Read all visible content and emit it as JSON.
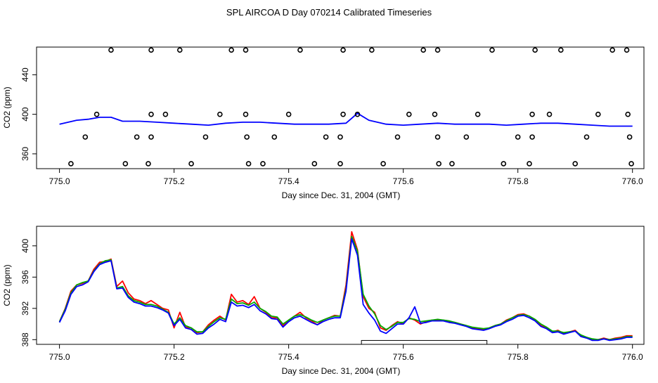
{
  "title": "SPL AIRCOA D  Day 070214  Calibrated Timeseries",
  "chart_data": [
    {
      "type": "scatter",
      "xlabel": "Day since Dec. 31, 2004 (GMT)",
      "ylabel": "CO2 (ppm)",
      "xlim": [
        774.96,
        776.02
      ],
      "ylim": [
        345,
        468
      ],
      "xticks": [
        775.0,
        775.2,
        775.4,
        775.6,
        775.8,
        776.0
      ],
      "xtick_labels": [
        "775.0",
        "775.2",
        "775.4",
        "775.6",
        "775.8",
        "776.0"
      ],
      "yticks": [
        360,
        400,
        440
      ],
      "ytick_labels": [
        "360",
        "400",
        "440"
      ],
      "series": [
        {
          "color": "#0000ff",
          "x": [
            775.0,
            775.03,
            775.05,
            775.07,
            775.09,
            775.11,
            775.14,
            775.17,
            775.2,
            775.23,
            775.26,
            775.29,
            775.32,
            775.35,
            775.38,
            775.41,
            775.44,
            775.47,
            775.5,
            775.52,
            775.54,
            775.57,
            775.6,
            775.63,
            775.66,
            775.69,
            775.72,
            775.75,
            775.78,
            775.81,
            775.84,
            775.87,
            775.9,
            775.93,
            775.96,
            776.0
          ],
          "y": [
            390,
            394,
            395,
            397,
            397,
            393,
            393,
            392,
            391,
            390,
            389,
            391,
            392,
            392,
            391,
            390,
            390,
            390,
            391,
            401,
            394,
            390,
            389,
            390,
            391,
            390,
            390,
            390,
            389,
            390,
            391,
            391,
            390,
            389,
            388,
            388
          ]
        },
        {
          "color": "#000000",
          "marker": "open-circle",
          "x": [
            775.02,
            775.045,
            775.065,
            775.09,
            775.115,
            775.135,
            775.155,
            775.16,
            775.16,
            775.16,
            775.185,
            775.21,
            775.23,
            775.255,
            775.28,
            775.3,
            775.325,
            775.325,
            775.327,
            775.33,
            775.355,
            775.375,
            775.4,
            775.42,
            775.445,
            775.465,
            775.49,
            775.49,
            775.495,
            775.495,
            775.52,
            775.545,
            775.565,
            775.59,
            775.61,
            775.635,
            775.655,
            775.66,
            775.66,
            775.662,
            775.685,
            775.71,
            775.73,
            775.755,
            775.775,
            775.8,
            775.82,
            775.825,
            775.825,
            775.83,
            775.855,
            775.875,
            775.9,
            775.92,
            775.94,
            775.965,
            775.99,
            775.992,
            775.995,
            775.998
          ],
          "y": [
            350,
            377,
            400,
            465,
            350,
            377,
            350,
            377,
            400,
            465,
            400,
            465,
            350,
            377,
            400,
            465,
            400,
            465,
            377,
            350,
            350,
            377,
            400,
            465,
            350,
            377,
            350,
            377,
            400,
            465,
            400,
            465,
            350,
            377,
            400,
            465,
            400,
            465,
            377,
            350,
            350,
            377,
            400,
            465,
            350,
            377,
            350,
            377,
            400,
            465,
            400,
            465,
            350,
            377,
            400,
            465,
            465,
            400,
            377,
            350
          ]
        }
      ]
    },
    {
      "type": "line",
      "xlabel": "Day since Dec. 31, 2004 (GMT)",
      "ylabel": "CO2 (ppm)",
      "xlim": [
        774.96,
        776.02
      ],
      "ylim": [
        387.4,
        402.5
      ],
      "xticks": [
        775.0,
        775.2,
        775.4,
        775.6,
        775.8,
        776.0
      ],
      "xtick_labels": [
        "775.0",
        "775.2",
        "775.4",
        "775.6",
        "775.8",
        "776.0"
      ],
      "yticks": [
        388,
        392,
        396,
        400
      ],
      "ytick_labels": [
        "388",
        "392",
        "396",
        "400"
      ],
      "x": [
        775.0,
        775.01,
        775.02,
        775.03,
        775.04,
        775.05,
        775.06,
        775.07,
        775.08,
        775.09,
        775.1,
        775.11,
        775.12,
        775.13,
        775.14,
        775.15,
        775.16,
        775.17,
        775.18,
        775.19,
        775.2,
        775.21,
        775.22,
        775.23,
        775.24,
        775.25,
        775.26,
        775.27,
        775.28,
        775.29,
        775.3,
        775.31,
        775.32,
        775.33,
        775.34,
        775.35,
        775.36,
        775.37,
        775.38,
        775.39,
        775.4,
        775.41,
        775.42,
        775.43,
        775.44,
        775.45,
        775.46,
        775.47,
        775.48,
        775.49,
        775.5,
        775.51,
        775.52,
        775.53,
        775.54,
        775.55,
        775.56,
        775.57,
        775.58,
        775.59,
        775.6,
        775.61,
        775.62,
        775.63,
        775.64,
        775.65,
        775.66,
        775.67,
        775.68,
        775.69,
        775.7,
        775.71,
        775.72,
        775.73,
        775.74,
        775.75,
        775.76,
        775.77,
        775.78,
        775.79,
        775.8,
        775.81,
        775.82,
        775.83,
        775.84,
        775.85,
        775.86,
        775.87,
        775.88,
        775.89,
        775.9,
        775.91,
        775.92,
        775.93,
        775.94,
        775.95,
        775.96,
        775.97,
        775.98,
        775.99,
        776.0
      ],
      "series": [
        {
          "color": "#ff0000",
          "y": [
            390.3,
            392.0,
            394.2,
            395.0,
            395.2,
            395.5,
            397.0,
            397.9,
            398.0,
            398.3,
            394.8,
            395.5,
            394.0,
            393.2,
            393.0,
            392.6,
            393.0,
            392.5,
            392.0,
            391.8,
            389.5,
            391.5,
            389.6,
            389.5,
            388.9,
            389.0,
            389.9,
            390.5,
            391.0,
            390.5,
            393.8,
            392.8,
            393.0,
            392.5,
            393.5,
            392.0,
            391.5,
            390.8,
            390.8,
            389.8,
            390.5,
            391.0,
            391.5,
            390.8,
            390.4,
            389.9,
            390.5,
            390.8,
            391.1,
            391.0,
            395.0,
            401.8,
            399.5,
            393.5,
            392.0,
            391.5,
            389.5,
            389.2,
            389.8,
            390.3,
            390.0,
            390.8,
            390.5,
            390.0,
            390.3,
            390.5,
            390.5,
            390.5,
            390.3,
            390.2,
            390.0,
            389.8,
            389.5,
            389.4,
            389.3,
            389.5,
            389.8,
            390.0,
            390.5,
            390.8,
            391.2,
            391.3,
            391.0,
            390.5,
            389.8,
            389.5,
            389.0,
            389.2,
            388.8,
            389.0,
            389.2,
            388.5,
            388.3,
            388.0,
            388.0,
            388.2,
            388.0,
            388.2,
            388.3,
            388.5,
            388.5
          ]
        },
        {
          "color": "#00aa00",
          "y": [
            390.3,
            391.9,
            394.0,
            395.0,
            395.3,
            395.5,
            396.8,
            397.7,
            398.1,
            398.2,
            394.6,
            394.8,
            393.6,
            393.0,
            392.8,
            392.5,
            392.5,
            392.3,
            391.9,
            391.5,
            390.0,
            390.8,
            389.8,
            389.5,
            389.0,
            389.0,
            389.7,
            390.3,
            390.8,
            390.6,
            393.2,
            392.6,
            392.7,
            392.4,
            392.8,
            392.0,
            391.6,
            391.0,
            390.9,
            390.0,
            390.5,
            391.0,
            391.2,
            390.9,
            390.5,
            390.2,
            390.5,
            390.8,
            391.0,
            391.0,
            394.5,
            401.2,
            399.3,
            393.8,
            392.3,
            391.3,
            389.8,
            389.3,
            389.7,
            390.2,
            390.2,
            390.7,
            390.6,
            390.3,
            390.4,
            390.5,
            390.6,
            390.5,
            390.4,
            390.2,
            390.0,
            389.8,
            389.6,
            389.5,
            389.4,
            389.5,
            389.8,
            390.0,
            390.4,
            390.8,
            391.1,
            391.2,
            391.0,
            390.6,
            390.0,
            389.6,
            389.1,
            389.1,
            388.9,
            389.0,
            389.1,
            388.6,
            388.3,
            388.1,
            388.0,
            388.1,
            388.0,
            388.1,
            388.2,
            388.4,
            388.4
          ]
        },
        {
          "color": "#0000ff",
          "y": [
            390.2,
            391.7,
            393.8,
            394.8,
            395.0,
            395.4,
            396.7,
            397.6,
            397.9,
            398.1,
            394.5,
            394.6,
            393.4,
            392.8,
            392.6,
            392.3,
            392.3,
            392.1,
            391.8,
            391.4,
            389.8,
            390.6,
            389.5,
            389.3,
            388.7,
            388.8,
            389.5,
            390.0,
            390.6,
            390.3,
            392.8,
            392.3,
            392.4,
            392.1,
            392.5,
            391.7,
            391.3,
            390.7,
            390.6,
            389.6,
            390.3,
            390.8,
            391.0,
            390.6,
            390.2,
            389.9,
            390.3,
            390.6,
            390.8,
            390.8,
            394.2,
            400.9,
            398.8,
            392.5,
            391.4,
            390.5,
            389.1,
            388.8,
            389.4,
            390.0,
            390.0,
            390.8,
            392.2,
            390.1,
            390.2,
            390.4,
            390.4,
            390.4,
            390.2,
            390.1,
            389.9,
            389.7,
            389.4,
            389.3,
            389.2,
            389.4,
            389.7,
            389.9,
            390.3,
            390.6,
            391.0,
            391.1,
            390.8,
            390.4,
            389.7,
            389.4,
            388.9,
            389.0,
            388.7,
            388.9,
            389.1,
            388.4,
            388.2,
            387.9,
            387.9,
            388.1,
            387.9,
            388.0,
            388.1,
            388.3,
            388.3
          ]
        }
      ],
      "annotation_box": {
        "x0": 775.527,
        "x1": 775.746,
        "y0": 387.4,
        "y1": 387.9
      }
    }
  ]
}
